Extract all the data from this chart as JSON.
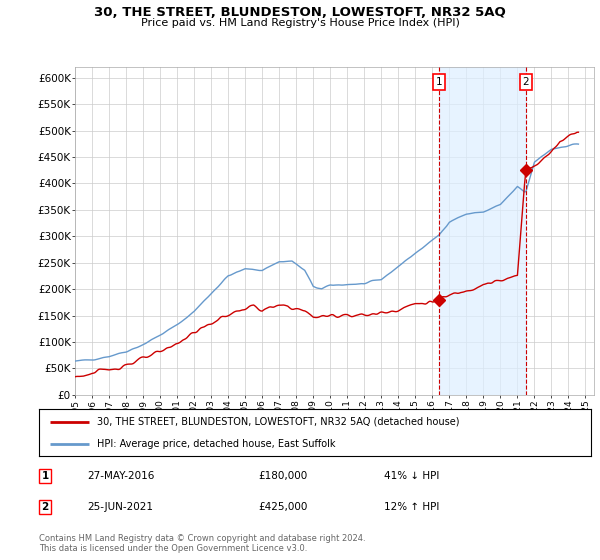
{
  "title": "30, THE STREET, BLUNDESTON, LOWESTOFT, NR32 5AQ",
  "subtitle": "Price paid vs. HM Land Registry's House Price Index (HPI)",
  "hpi_color": "#6699cc",
  "hpi_fill_color": "#ddeeff",
  "price_color": "#cc0000",
  "annotation_color": "#cc0000",
  "background_color": "#ffffff",
  "grid_color": "#cccccc",
  "ylim": [
    0,
    620000
  ],
  "yticks": [
    0,
    50000,
    100000,
    150000,
    200000,
    250000,
    300000,
    350000,
    400000,
    450000,
    500000,
    550000,
    600000
  ],
  "ytick_labels": [
    "£0",
    "£50K",
    "£100K",
    "£150K",
    "£200K",
    "£250K",
    "£300K",
    "£350K",
    "£400K",
    "£450K",
    "£500K",
    "£550K",
    "£600K"
  ],
  "xlim_start": 1995.0,
  "xlim_end": 2025.5,
  "xtick_years": [
    1995,
    1996,
    1997,
    1998,
    1999,
    2000,
    2001,
    2002,
    2003,
    2004,
    2005,
    2006,
    2007,
    2008,
    2009,
    2010,
    2011,
    2012,
    2013,
    2014,
    2015,
    2016,
    2017,
    2018,
    2019,
    2020,
    2021,
    2022,
    2023,
    2024,
    2025
  ],
  "legend_label_price": "30, THE STREET, BLUNDESTON, LOWESTOFT, NR32 5AQ (detached house)",
  "legend_label_hpi": "HPI: Average price, detached house, East Suffolk",
  "sale1_x": 2016.41,
  "sale1_y": 180000,
  "sale1_label": "1",
  "sale1_date": "27-MAY-2016",
  "sale1_price": "£180,000",
  "sale1_note": "41% ↓ HPI",
  "sale2_x": 2021.48,
  "sale2_y": 425000,
  "sale2_label": "2",
  "sale2_date": "25-JUN-2021",
  "sale2_price": "£425,000",
  "sale2_note": "12% ↑ HPI",
  "footnote": "Contains HM Land Registry data © Crown copyright and database right 2024.\nThis data is licensed under the Open Government Licence v3.0."
}
